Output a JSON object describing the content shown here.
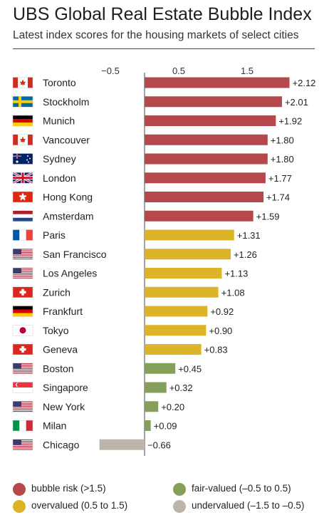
{
  "title": "UBS Global Real Estate Bubble Index",
  "subtitle": "Latest index scores for the housing markets of select cities",
  "colors": {
    "bubble_risk": "#b5484b",
    "overvalued": "#dbb428",
    "fair_valued": "#85a05a",
    "undervalued": "#bdb5a8"
  },
  "legend": [
    {
      "label": "bubble risk (>1.5)",
      "color_key": "bubble_risk"
    },
    {
      "label": "fair-valued (–0.5 to 0.5)",
      "color_key": "fair_valued"
    },
    {
      "label": "overvalued (0.5 to 1.5)",
      "color_key": "overvalued"
    },
    {
      "label": "undervalued (–1.5 to –0.5)",
      "color_key": "undervalued"
    }
  ],
  "chart_data": {
    "type": "bar",
    "orientation": "horizontal",
    "categories": [
      "Toronto",
      "Stockholm",
      "Munich",
      "Vancouver",
      "Sydney",
      "London",
      "Hong Kong",
      "Amsterdam",
      "Paris",
      "San Francisco",
      "Los Angeles",
      "Zurich",
      "Frankfurt",
      "Tokyo",
      "Geneva",
      "Boston",
      "Singapore",
      "New York",
      "Milan",
      "Chicago"
    ],
    "values": [
      2.12,
      2.01,
      1.92,
      1.8,
      1.8,
      1.77,
      1.74,
      1.59,
      1.31,
      1.26,
      1.13,
      1.08,
      0.92,
      0.9,
      0.83,
      0.45,
      0.32,
      0.2,
      0.09,
      -0.66
    ],
    "value_labels": [
      "+2.12",
      "+2.01",
      "+1.92",
      "+1.80",
      "+1.80",
      "+1.77",
      "+1.74",
      "+1.59",
      "+1.31",
      "+1.26",
      "+1.13",
      "+1.08",
      "+0.92",
      "+0.90",
      "+0.83",
      "+0.45",
      "+0.32",
      "+0.20",
      "+0.09",
      "−0.66"
    ],
    "categories_color": [
      "bubble_risk",
      "bubble_risk",
      "bubble_risk",
      "bubble_risk",
      "bubble_risk",
      "bubble_risk",
      "bubble_risk",
      "bubble_risk",
      "overvalued",
      "overvalued",
      "overvalued",
      "overvalued",
      "overvalued",
      "overvalued",
      "overvalued",
      "fair_valued",
      "fair_valued",
      "fair_valued",
      "fair_valued",
      "undervalued"
    ],
    "flags": [
      "flag-canada",
      "flag-sweden",
      "flag-germany",
      "flag-canada",
      "flag-australia",
      "flag-uk",
      "flag-hongkong",
      "flag-netherlands",
      "flag-france",
      "flag-usa",
      "flag-usa",
      "flag-switzerland",
      "flag-germany",
      "flag-japan",
      "flag-switzerland",
      "flag-usa",
      "flag-singapore",
      "flag-usa",
      "flag-italy",
      "flag-usa"
    ],
    "x_ticks": [
      -0.5,
      0.5,
      1.5
    ],
    "x_tick_labels": [
      "−0.5",
      "0.5",
      "1.5"
    ],
    "xlim": [
      -0.7,
      2.3
    ],
    "grid": false
  }
}
